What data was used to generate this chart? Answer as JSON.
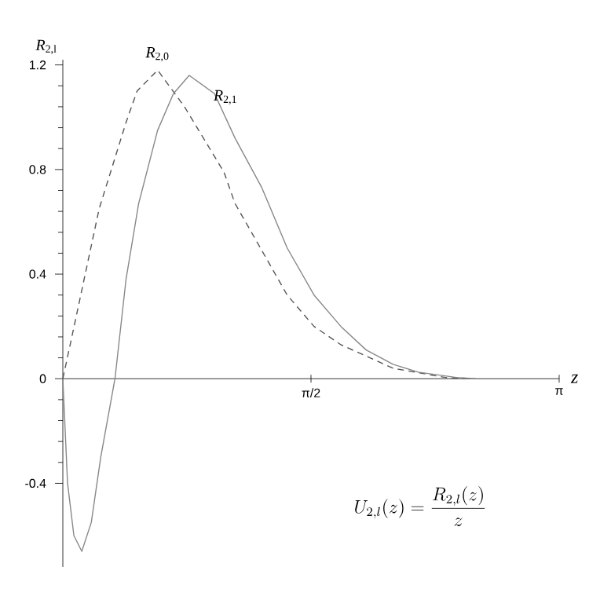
{
  "chart_data": {
    "type": "line",
    "ylabel": "*R*$_{2,l}$",
    "xlabel": "*z*",
    "annotations": [
      "U_{2,l}(z)=\\frac{R_{2,l}(z)}{z}"
    ],
    "xlim": [
      0,
      3.1416
    ],
    "ylim": [
      -0.72,
      1.22
    ],
    "xticks": [
      {
        "value": 1.5708,
        "label": "π/2"
      },
      {
        "value": 3.1416,
        "label": "π"
      }
    ],
    "yticks": [
      -0.4,
      0,
      0.4,
      0.8,
      1.2
    ],
    "grid": false,
    "legend": false,
    "series": [
      {
        "name": "*R*$_{2,0}$",
        "color": "#555555",
        "line_style": "dashed",
        "x": [
          0,
          0.05,
          0.23,
          0.4,
          0.47,
          0.6,
          0.77,
          1.02,
          1.09,
          1.26,
          1.42,
          1.59,
          1.76,
          2.09,
          2.42,
          2.61
        ],
        "values": [
          0,
          0.14,
          0.65,
          0.98,
          1.1,
          1.18,
          1.04,
          0.79,
          0.67,
          0.49,
          0.32,
          0.2,
          0.13,
          0.04,
          0.005,
          0
        ]
      },
      {
        "name": "*R*$_{2,1}$",
        "color": "#888888",
        "line_style": "solid",
        "x": [
          0,
          0.03,
          0.07,
          0.12,
          0.18,
          0.24,
          0.33,
          0.4,
          0.48,
          0.6,
          0.7,
          0.8,
          0.96,
          1.09,
          1.26,
          1.42,
          1.59,
          1.76,
          1.92,
          2.09,
          2.25,
          2.49,
          2.61
        ],
        "values": [
          0,
          -0.4,
          -0.6,
          -0.66,
          -0.55,
          -0.3,
          0,
          0.38,
          0.67,
          0.95,
          1.09,
          1.16,
          1.09,
          0.92,
          0.73,
          0.5,
          0.32,
          0.2,
          0.11,
          0.055,
          0.025,
          0.005,
          0
        ]
      }
    ]
  }
}
